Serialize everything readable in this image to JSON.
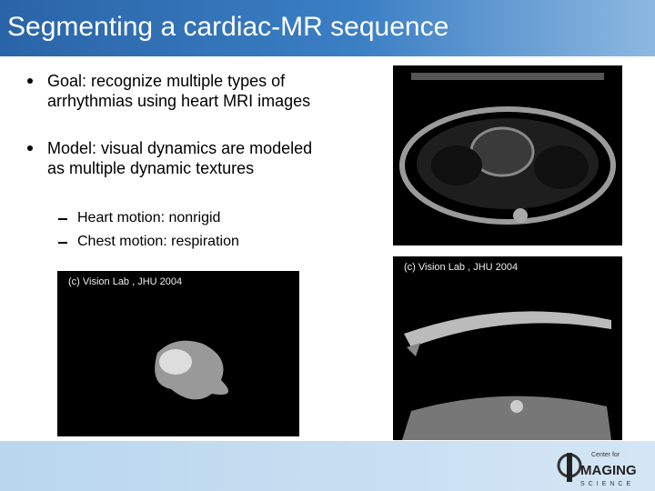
{
  "header": {
    "title": "Segmenting a cardiac-MR sequence"
  },
  "bullets": [
    "Goal: recognize multiple types of arrhythmias  using heart MRI images",
    "Model: visual dynamics are modeled as multiple dynamic textures"
  ],
  "subbullets": [
    "Heart motion: nonrigid",
    "Chest motion: respiration"
  ],
  "image_captions": [
    "(c) Vision Lab , JHU 2004",
    "(c) Vision Lab , JHU 2004"
  ],
  "logo": {
    "top": "Center for",
    "main": "MAGING",
    "bottom": "SCIENCE"
  }
}
